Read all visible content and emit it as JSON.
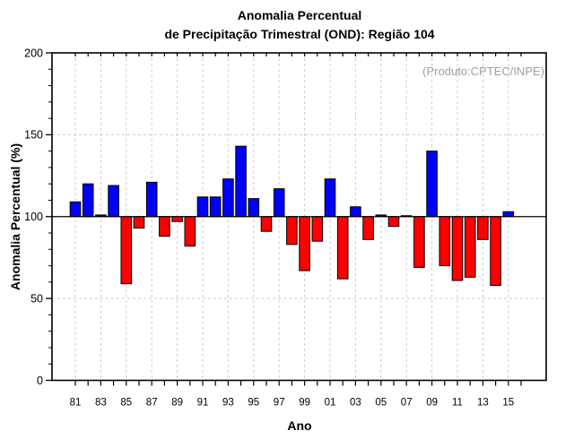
{
  "header": {
    "title_line1": "Anomalia Percentual",
    "title_line2": "de Precipitação Trimestral (OND): Região 104"
  },
  "annotation": {
    "source_label": "(Produto:CPTEC/INPE)",
    "color": "#9e9e9e"
  },
  "chart_data": {
    "type": "bar",
    "title": "Anomalia Percentual de Precipitação Trimestral (OND): Região 104",
    "xlabel": "Ano",
    "ylabel": "Anomalia Percentual (%)",
    "ylim": [
      0,
      200
    ],
    "y_major_ticks": [
      0,
      50,
      100,
      150,
      200
    ],
    "y_minor_step": 10,
    "baseline": 100,
    "x_tick_labels": [
      "81",
      "83",
      "85",
      "87",
      "89",
      "91",
      "93",
      "95",
      "97",
      "99",
      "01",
      "03",
      "05",
      "07",
      "09",
      "11",
      "13",
      "15"
    ],
    "years": [
      1981,
      1982,
      1983,
      1984,
      1985,
      1986,
      1987,
      1988,
      1989,
      1990,
      1991,
      1992,
      1993,
      1994,
      1995,
      1996,
      1997,
      1998,
      1999,
      2000,
      2001,
      2002,
      2003,
      2004,
      2005,
      2006,
      2007,
      2008,
      2009,
      2010,
      2011,
      2012,
      2013,
      2014,
      2015
    ],
    "values": [
      109,
      120,
      101,
      119,
      59,
      93,
      121,
      88,
      97,
      82,
      112,
      112,
      123,
      143,
      111,
      91,
      117,
      83,
      67,
      85,
      123,
      62,
      106,
      86,
      101,
      94,
      100,
      69,
      140,
      70,
      61,
      63,
      86,
      58,
      103
    ],
    "grid": {
      "vertical_dashed_at_labeled_years": true,
      "horizontal_dashed_at": [
        50,
        150
      ],
      "color": "#cccccc"
    },
    "colors": {
      "above_baseline": "#0000ff",
      "below_baseline": "#ff0000",
      "bar_outline": "#000000",
      "axis": "#000000"
    },
    "legend": "none"
  }
}
